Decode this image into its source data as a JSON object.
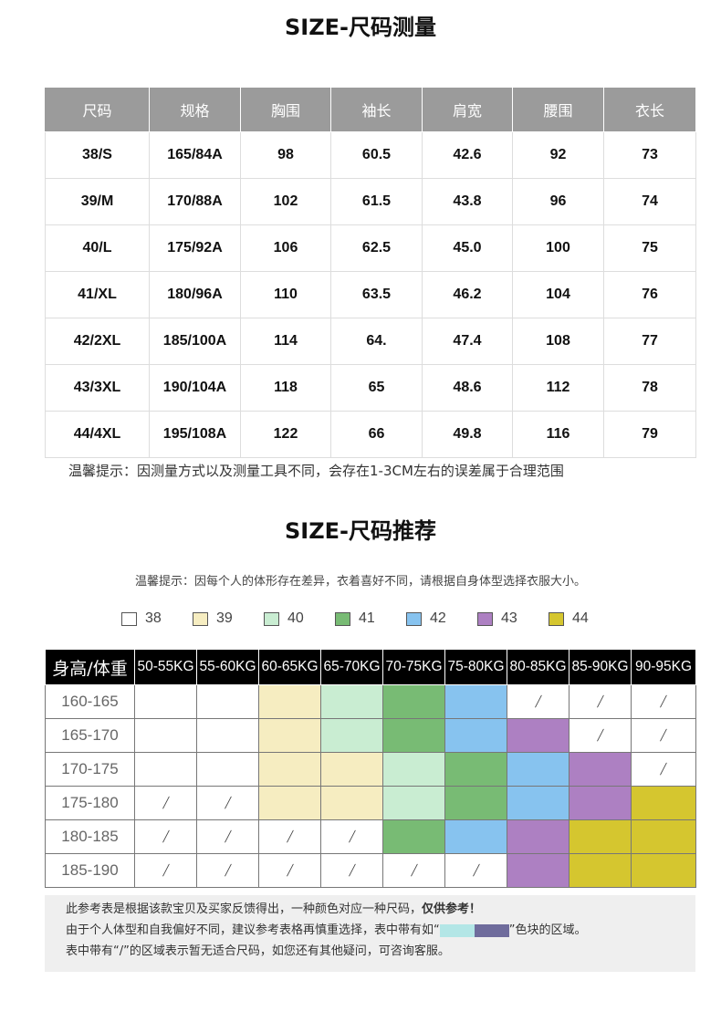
{
  "measure": {
    "title": "SIZE-尺码测量",
    "headers": [
      "尺码",
      "规格",
      "胸围",
      "袖长",
      "肩宽",
      "腰围",
      "衣长"
    ],
    "rows": [
      [
        "38/S",
        "165/84A",
        "98",
        "60.5",
        "42.6",
        "92",
        "73"
      ],
      [
        "39/M",
        "170/88A",
        "102",
        "61.5",
        "43.8",
        "96",
        "74"
      ],
      [
        "40/L",
        "175/92A",
        "106",
        "62.5",
        "45.0",
        "100",
        "75"
      ],
      [
        "41/XL",
        "180/96A",
        "110",
        "63.5",
        "46.2",
        "104",
        "76"
      ],
      [
        "42/2XL",
        "185/100A",
        "114",
        "64.",
        "47.4",
        "108",
        "77"
      ],
      [
        "43/3XL",
        "190/104A",
        "118",
        "65",
        "48.6",
        "112",
        "78"
      ],
      [
        "44/4XL",
        "195/108A",
        "122",
        "66",
        "49.8",
        "116",
        "79"
      ]
    ],
    "note": "温馨提示：因测量方式以及测量工具不同，会存在1-3CM左右的误差属于合理范围"
  },
  "recommend": {
    "title": "SIZE-尺码推荐",
    "note": "温馨提示：因每个人的体形存在差异，衣着喜好不同，请根据自身体型选择衣服大小。",
    "legend": [
      {
        "label": "38",
        "color": "#ffffff"
      },
      {
        "label": "39",
        "color": "#f6edc1"
      },
      {
        "label": "40",
        "color": "#c9edd2"
      },
      {
        "label": "41",
        "color": "#78bb74"
      },
      {
        "label": "42",
        "color": "#87c3ef"
      },
      {
        "label": "43",
        "color": "#ad80c2"
      },
      {
        "label": "44",
        "color": "#d5c62f"
      }
    ],
    "corner_label": "身高/体重",
    "weights": [
      "50-55KG",
      "55-60KG",
      "60-65KG",
      "65-70KG",
      "70-75KG",
      "75-80KG",
      "80-85KG",
      "85-90KG",
      "90-95KG"
    ],
    "heights": [
      "160-165",
      "165-170",
      "170-175",
      "175-180",
      "180-185",
      "185-190"
    ],
    "slash": "/",
    "grid": [
      [
        "38",
        "38",
        "39",
        "40",
        "41",
        "42",
        "/",
        "/",
        "/"
      ],
      [
        "38",
        "38",
        "39",
        "40",
        "41",
        "42",
        "43",
        "/",
        "/"
      ],
      [
        "38",
        "38",
        "39",
        "39",
        "40",
        "41",
        "42",
        "43",
        "/"
      ],
      [
        "/",
        "/",
        "39",
        "39",
        "40",
        "41",
        "42",
        "43",
        "44"
      ],
      [
        "/",
        "/",
        "/",
        "/",
        "41",
        "42",
        "43",
        "44",
        "44"
      ],
      [
        "/",
        "/",
        "/",
        "/",
        "/",
        "/",
        "43",
        "44",
        "44"
      ]
    ]
  },
  "bottom_note": {
    "line1": "此参考表是根据该款宝贝及买家反馈得出，一种颜色对应一种尺码，",
    "line1_bold": "仅供参考！",
    "line2_pre": "由于个人体型和自我偏好不同，建议参考表格再慎重选择，表中带有如“",
    "line2_post": "”色块的区域。",
    "chip_colors": [
      "#b3e6e6",
      "#6f6c9c"
    ],
    "line3": "表中带有“/”的区域表示暂无适合尺码，如您还有其他疑问，可咨询客服。"
  }
}
